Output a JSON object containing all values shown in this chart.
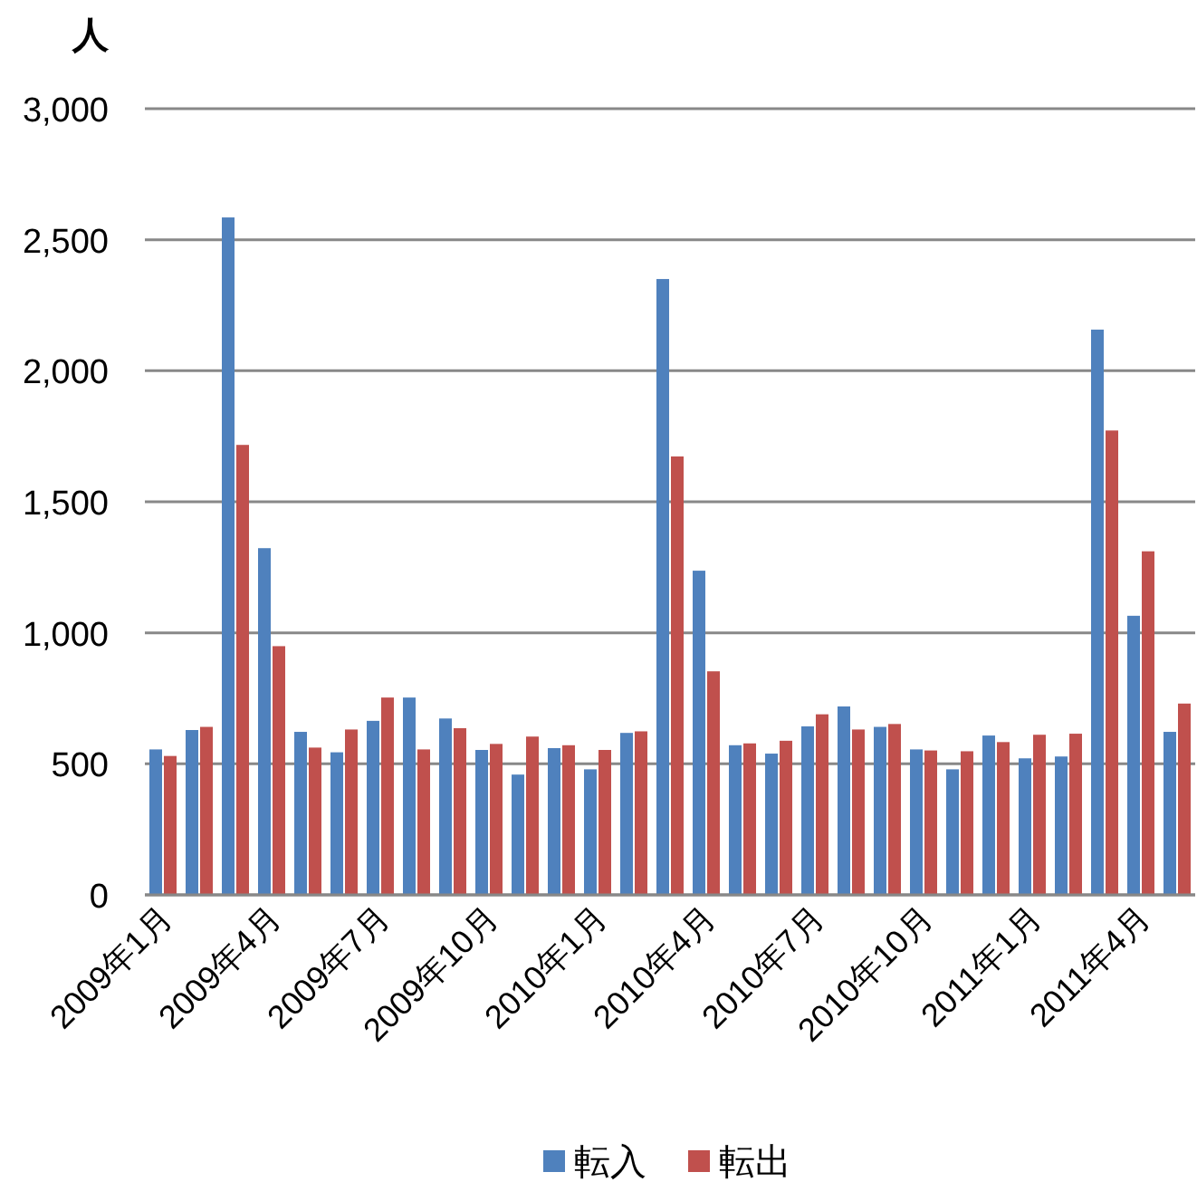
{
  "chart_data": {
    "type": "bar",
    "ylabel": "人",
    "categories": [
      "2009年1月",
      null,
      null,
      "2009年4月",
      null,
      null,
      "2009年7月",
      null,
      null,
      "2009年10月",
      null,
      null,
      "2010年1月",
      null,
      null,
      "2010年4月",
      null,
      null,
      "2010年7月",
      null,
      null,
      "2010年10月",
      null,
      null,
      "2011年1月",
      null,
      null,
      "2011年4月",
      null
    ],
    "series": [
      {
        "name": "転入",
        "color": "#4f81bd",
        "values": [
          555,
          629,
          2585,
          1323,
          622,
          544,
          664,
          753,
          673,
          553,
          459,
          560,
          479,
          618,
          2350,
          1237,
          571,
          539,
          643,
          719,
          641,
          555,
          479,
          608,
          521,
          528,
          2157,
          1065,
          622
        ]
      },
      {
        "name": "転出",
        "color": "#c0504d",
        "values": [
          530,
          641,
          1717,
          949,
          562,
          631,
          753,
          555,
          636,
          576,
          604,
          571,
          553,
          624,
          1673,
          853,
          578,
          588,
          689,
          631,
          652,
          551,
          548,
          583,
          611,
          615,
          1772,
          1311,
          730
        ]
      }
    ],
    "ylim": [
      0,
      3000
    ],
    "yticks": [
      0,
      500,
      {
        "value": 1000,
        "label": "1,000"
      },
      {
        "value": 1500,
        "label": "1,500"
      },
      {
        "value": 2000,
        "label": "2,000"
      },
      {
        "value": 2500,
        "label": "2,500"
      },
      {
        "value": 3000,
        "label": "3,000"
      }
    ],
    "grid": "y",
    "legend": "bottom"
  }
}
